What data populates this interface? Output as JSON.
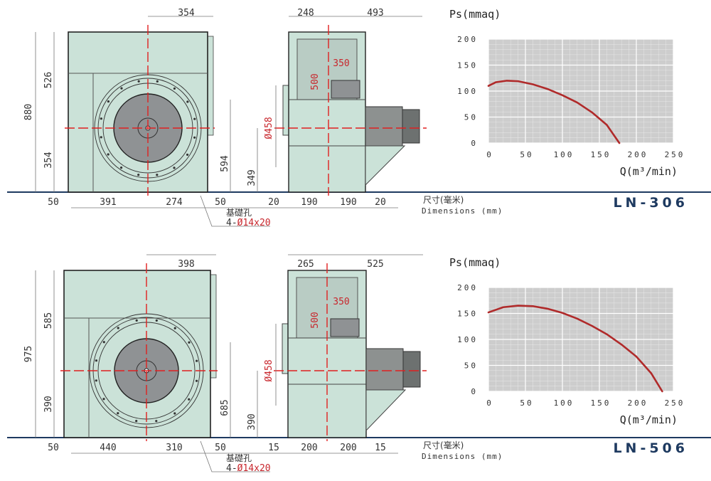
{
  "colors": {
    "body": "#cbe2d8",
    "impeller": "#8f9294",
    "curve": "#b02a2a",
    "grid_bg": "#cdcdcd",
    "ground": "#1e3a60",
    "centerline": "#e02020"
  },
  "models": [
    {
      "name": "LN-306",
      "dims": {
        "top_front": "354",
        "height_total": "880",
        "height_upper": "526",
        "height_lower": "354",
        "outlet_height": "594",
        "shaft_height": "349",
        "diameter": "Ø458",
        "top_side_left": "248",
        "top_side_right": "493",
        "window_w": "350",
        "window_h": "500",
        "bottom": [
          "50",
          "391",
          "274",
          "50",
          "20",
          "190",
          "190",
          "20"
        ]
      },
      "foundation_label": "基礎孔",
      "foundation_spec_prefix": "4-",
      "foundation_spec": "Ø14x20",
      "units_cn": "尺寸(毫米)",
      "units_en": "Dimensions (mm)",
      "chart": {
        "type": "line",
        "ylabel": "Ps(mmaq)",
        "xlabel": "Q(m³/min)",
        "xticks": [
          "0",
          "50",
          "100",
          "150",
          "200",
          "250"
        ],
        "yticks": [
          "0",
          "50",
          "100",
          "150",
          "200"
        ],
        "xlim": [
          0,
          250
        ],
        "ylim": [
          0,
          200
        ],
        "series": [
          {
            "name": "Ps",
            "x": [
              0,
              10,
              25,
              40,
              60,
              80,
              100,
              120,
              140,
              160,
              177
            ],
            "y": [
              110,
              117,
              120,
              119,
              113,
              104,
              92,
              78,
              59,
              35,
              0
            ]
          }
        ]
      }
    },
    {
      "name": "LN-506",
      "dims": {
        "top_front": "398",
        "height_total": "975",
        "height_upper": "585",
        "height_lower": "390",
        "outlet_height": "685",
        "shaft_height": "390",
        "diameter": "Ø458",
        "top_side_left": "265",
        "top_side_right": "525",
        "window_w": "350",
        "window_h": "500",
        "bottom": [
          "50",
          "440",
          "310",
          "50",
          "15",
          "200",
          "200",
          "15"
        ]
      },
      "foundation_label": "基礎孔",
      "foundation_spec_prefix": "4-",
      "foundation_spec": "Ø14x20",
      "units_cn": "尺寸(毫米)",
      "units_en": "Dimensions (mm)",
      "chart": {
        "type": "line",
        "ylabel": "Ps(mmaq)",
        "xlabel": "Q(m³/min)",
        "xticks": [
          "0",
          "50",
          "100",
          "150",
          "200",
          "250"
        ],
        "yticks": [
          "0",
          "50",
          "100",
          "150",
          "200"
        ],
        "xlim": [
          0,
          250
        ],
        "ylim": [
          0,
          200
        ],
        "series": [
          {
            "name": "Ps",
            "x": [
              0,
              20,
              40,
              60,
              80,
              100,
              120,
              140,
              160,
              180,
              200,
              220,
              235
            ],
            "y": [
              152,
              162,
              165,
              164,
              159,
              151,
              140,
              126,
              110,
              90,
              67,
              35,
              0
            ]
          }
        ]
      }
    }
  ],
  "chart_data": [
    {
      "type": "line",
      "title": "LN-306",
      "xlabel": "Q(m³/min)",
      "ylabel": "Ps(mmaq)",
      "xlim": [
        0,
        250
      ],
      "ylim": [
        0,
        200
      ],
      "series": [
        {
          "name": "Ps",
          "x": [
            0,
            10,
            25,
            40,
            60,
            80,
            100,
            120,
            140,
            160,
            177
          ],
          "y": [
            110,
            117,
            120,
            119,
            113,
            104,
            92,
            78,
            59,
            35,
            0
          ]
        }
      ]
    },
    {
      "type": "line",
      "title": "LN-506",
      "xlabel": "Q(m³/min)",
      "ylabel": "Ps(mmaq)",
      "xlim": [
        0,
        250
      ],
      "ylim": [
        0,
        200
      ],
      "series": [
        {
          "name": "Ps",
          "x": [
            0,
            20,
            40,
            60,
            80,
            100,
            120,
            140,
            160,
            180,
            200,
            220,
            235
          ],
          "y": [
            152,
            162,
            165,
            164,
            159,
            151,
            140,
            126,
            110,
            90,
            67,
            35,
            0
          ]
        }
      ]
    }
  ]
}
